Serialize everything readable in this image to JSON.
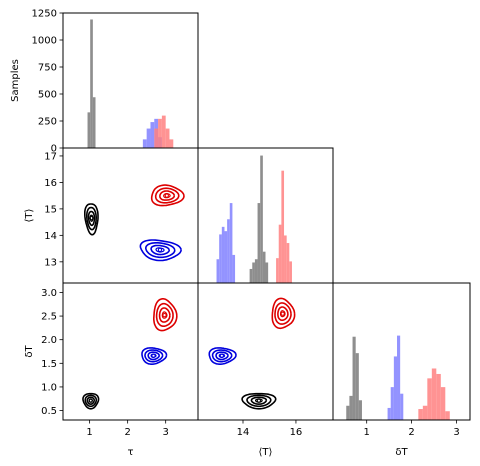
{
  "colors": {
    "black": "#000000",
    "blue": "#0000dd",
    "red": "#dd0000",
    "gray_hist": "#7a7a7a",
    "blue_hist": "#8080ff",
    "red_hist": "#ff8080"
  },
  "chart_data": {
    "type": "corner",
    "variables": [
      "τ",
      "⟨T⟩",
      "δT"
    ],
    "series": [
      {
        "color": "black",
        "tau": 1.05,
        "T": 14.7,
        "dT": 0.73
      },
      {
        "color": "blue",
        "tau": 2.65,
        "T": 13.5,
        "dT": 1.67
      },
      {
        "color": "red",
        "tau": 2.95,
        "T": 15.5,
        "dT": 2.55
      }
    ],
    "panels": [
      {
        "id": "hist-tau",
        "type": "histogram",
        "xlim": [
          0.3,
          3.85
        ],
        "ylim": [
          0,
          1250
        ],
        "ylabel": "Samples",
        "yticks": [
          "0",
          "250",
          "500",
          "750",
          "1000",
          "1250"
        ],
        "bars": [
          {
            "color": "gray_hist",
            "centers": [
              0.98,
              1.05,
              1.12
            ],
            "counts": [
              330,
              1190,
              470
            ]
          },
          {
            "color": "blue_hist",
            "centers": [
              2.45,
              2.55,
              2.65,
              2.75,
              2.85
            ],
            "counts": [
              80,
              180,
              240,
              270,
              100
            ]
          },
          {
            "color": "red_hist",
            "centers": [
              2.75,
              2.85,
              2.95,
              3.05,
              3.15
            ],
            "counts": [
              180,
              270,
              300,
              180,
              80
            ]
          }
        ]
      },
      {
        "id": "kde-tau-T",
        "type": "contour",
        "xlim": [
          0.3,
          3.85
        ],
        "ylim": [
          12.2,
          17.3
        ],
        "ylabel": "⟨T⟩",
        "yticks": [
          "13",
          "14",
          "15",
          "16",
          "17"
        ],
        "contours": [
          {
            "color": "black",
            "center": [
              1.05,
              14.65
            ],
            "r": [
              0.17,
              0.58
            ],
            "skew": -0.25
          },
          {
            "color": "blue",
            "center": [
              2.85,
              13.45
            ],
            "r": [
              0.52,
              0.38
            ],
            "skew": -0.35
          },
          {
            "color": "red",
            "center": [
              3.03,
              15.5
            ],
            "r": [
              0.42,
              0.38
            ],
            "skew": 0.1
          }
        ]
      },
      {
        "id": "kde-tau-dT",
        "type": "contour",
        "xlim": [
          0.3,
          3.85
        ],
        "ylim": [
          0.3,
          3.2
        ],
        "ylabel": "δT",
        "xlabel": "τ",
        "xticks": [
          "1",
          "2",
          "3"
        ],
        "yticks": [
          "0.5",
          "1.0",
          "1.5",
          "2.0",
          "2.5",
          "3.0"
        ],
        "contours": [
          {
            "color": "black",
            "center": [
              1.03,
              0.71
            ],
            "r": [
              0.2,
              0.16
            ],
            "skew": 0
          },
          {
            "color": "blue",
            "center": [
              2.68,
              1.66
            ],
            "r": [
              0.32,
              0.17
            ],
            "skew": 0
          },
          {
            "color": "red",
            "center": [
              2.97,
              2.52
            ],
            "r": [
              0.3,
              0.33
            ],
            "skew": 0
          }
        ]
      },
      {
        "id": "hist-T",
        "type": "histogram",
        "xlim": [
          12.3,
          17.4
        ],
        "ylim": [
          0,
          1250
        ],
        "bars": [
          {
            "color": "blue_hist",
            "centers": [
              13.05,
              13.15,
              13.25,
              13.35,
              13.45,
              13.55,
              13.65
            ],
            "counts": [
              220,
              450,
              520,
              480,
              590,
              740,
              260
            ]
          },
          {
            "color": "gray_hist",
            "centers": [
              14.3,
              14.4,
              14.5,
              14.6,
              14.7,
              14.8,
              14.9
            ],
            "counts": [
              130,
              190,
              220,
              740,
              1180,
              290,
              190
            ]
          },
          {
            "color": "red_hist",
            "centers": [
              15.3,
              15.4,
              15.5,
              15.6,
              15.7,
              15.8
            ],
            "counts": [
              230,
              540,
              1040,
              440,
              370,
              200
            ]
          }
        ]
      },
      {
        "id": "kde-T-dT",
        "type": "contour",
        "xlim": [
          12.3,
          17.4
        ],
        "ylim": [
          0.3,
          3.2
        ],
        "xlabel": "⟨T⟩",
        "xticks": [
          "14",
          "16"
        ],
        "contours": [
          {
            "color": "black",
            "center": [
              14.6,
              0.71
            ],
            "r": [
              0.62,
              0.16
            ],
            "skew": 0
          },
          {
            "color": "blue",
            "center": [
              13.2,
              1.66
            ],
            "r": [
              0.5,
              0.17
            ],
            "skew": 0
          },
          {
            "color": "red",
            "center": [
              15.5,
              2.55
            ],
            "r": [
              0.42,
              0.31
            ],
            "skew": 0
          }
        ]
      },
      {
        "id": "hist-dT",
        "type": "histogram",
        "xlim": [
          0.25,
          3.3
        ],
        "ylim": [
          0,
          1250
        ],
        "xlabel": "δT",
        "xticks": [
          "1",
          "2",
          "3"
        ],
        "bars": [
          {
            "color": "gray_hist",
            "centers": [
              0.58,
              0.65,
              0.72,
              0.79,
              0.86
            ],
            "counts": [
              130,
              220,
              760,
              610,
              180
            ]
          },
          {
            "color": "blue_hist",
            "centers": [
              1.5,
              1.57,
              1.64,
              1.71,
              1.78
            ],
            "counts": [
              110,
              300,
              580,
              770,
              240
            ]
          },
          {
            "color": "red_hist",
            "centers": [
              2.2,
              2.3,
              2.4,
              2.5,
              2.6,
              2.7,
              2.8
            ],
            "counts": [
              100,
              130,
              380,
              470,
              420,
              300,
              80
            ]
          }
        ]
      }
    ]
  }
}
